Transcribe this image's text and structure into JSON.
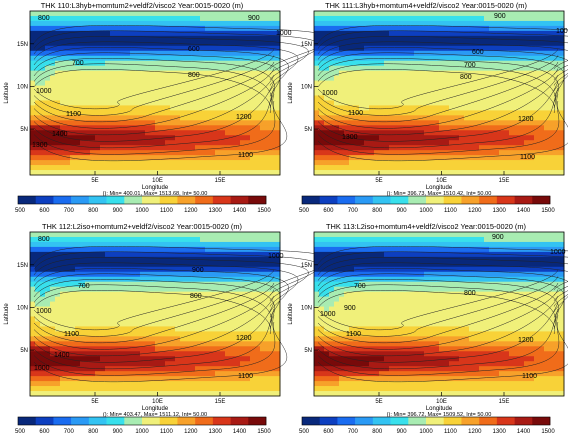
{
  "chart_data": [
    {
      "type": "heatmap",
      "title": "THK 110:L3hyb+momtum2+veldf2/visco2 Year:0015-0020 (m)",
      "xlabel": "Longitude",
      "ylabel": "Latitude",
      "x_ticks": [
        "5E",
        "10E",
        "15E"
      ],
      "y_ticks": [
        "5N",
        "10N",
        "15N"
      ],
      "stats": "(): Min= 400.01, Max= 1513.68, Int= 50.00",
      "contour_labels": [
        "800",
        "900",
        "1000",
        "700",
        "600",
        "800",
        "1000",
        "1100",
        "1100",
        "1400",
        "1300",
        "1200"
      ],
      "colorbar_ticks": [
        "500",
        "600",
        "700",
        "800",
        "900",
        "1000",
        "1100",
        "1200",
        "1300",
        "1400",
        "1500"
      ],
      "colorbar_colors": [
        "#08287b",
        "#0d3fc0",
        "#1a6cf0",
        "#2a9af5",
        "#33c3f2",
        "#38e0ec",
        "#a8ecb2",
        "#f0f07a",
        "#f8d238",
        "#f7a12a",
        "#f06c1a",
        "#d8361a",
        "#a81a14",
        "#780a0a"
      ]
    },
    {
      "type": "heatmap",
      "title": "THK 111:L3hyb+momtum4+veldf2/visco2 Year:0015-0020 (m)",
      "xlabel": "Longitude",
      "ylabel": "Latitude",
      "x_ticks": [
        "5E",
        "10E",
        "15E"
      ],
      "y_ticks": [
        "5N",
        "10N",
        "15N"
      ],
      "stats": "(): Min= 396.73, Max= 1510.42, Int= 50.00",
      "contour_labels": [
        "900",
        "1000",
        "600",
        "700",
        "800",
        "1000",
        "1100",
        "1100",
        "1300",
        "1200"
      ],
      "colorbar_ticks": [
        "500",
        "600",
        "700",
        "800",
        "900",
        "1000",
        "1100",
        "1200",
        "1300",
        "1400",
        "1500"
      ],
      "colorbar_colors": [
        "#08287b",
        "#0d3fc0",
        "#1a6cf0",
        "#2a9af5",
        "#33c3f2",
        "#38e0ec",
        "#a8ecb2",
        "#f0f07a",
        "#f8d238",
        "#f7a12a",
        "#f06c1a",
        "#d8361a",
        "#a81a14",
        "#780a0a"
      ]
    },
    {
      "type": "heatmap",
      "title": "THK 112:L2iso+momtum2+veldf2/visco2 Year:0015-0020 (m)",
      "xlabel": "Longitude",
      "ylabel": "Latitude",
      "x_ticks": [
        "5E",
        "10E",
        "15E"
      ],
      "y_ticks": [
        "5N",
        "10N",
        "15N"
      ],
      "stats": "(): Min= 403.47, Max= 1511.12, Int= 50.00",
      "contour_labels": [
        "800",
        "1000",
        "900",
        "700",
        "800",
        "1000",
        "1100",
        "1100",
        "1400",
        "1000",
        "1200"
      ],
      "colorbar_ticks": [
        "500",
        "600",
        "700",
        "800",
        "900",
        "1000",
        "1100",
        "1200",
        "1300",
        "1400",
        "1500"
      ],
      "colorbar_colors": [
        "#08287b",
        "#0d3fc0",
        "#1a6cf0",
        "#2a9af5",
        "#33c3f2",
        "#38e0ec",
        "#a8ecb2",
        "#f0f07a",
        "#f8d238",
        "#f7a12a",
        "#f06c1a",
        "#d8361a",
        "#a81a14",
        "#780a0a"
      ]
    },
    {
      "type": "heatmap",
      "title": "THK 113:L2iso+momtum4+veldf2/visco2 Year:0015-0020 (m)",
      "xlabel": "Longitude",
      "ylabel": "Latitude",
      "x_ticks": [
        "5E",
        "10E",
        "15E"
      ],
      "y_ticks": [
        "5N",
        "10N",
        "15N"
      ],
      "stats": "(): Min= 396.72, Max= 1509.52, Int= 50.00",
      "contour_labels": [
        "900",
        "1000",
        "700",
        "800",
        "900",
        "1000",
        "1100",
        "1100",
        "1200"
      ],
      "colorbar_ticks": [
        "500",
        "600",
        "700",
        "800",
        "900",
        "1000",
        "1100",
        "1200",
        "1300",
        "1400",
        "1500"
      ],
      "colorbar_colors": [
        "#08287b",
        "#0d3fc0",
        "#1a6cf0",
        "#2a9af5",
        "#33c3f2",
        "#38e0ec",
        "#a8ecb2",
        "#f0f07a",
        "#f8d238",
        "#f7a12a",
        "#f06c1a",
        "#d8361a",
        "#a81a14",
        "#780a0a"
      ]
    }
  ]
}
